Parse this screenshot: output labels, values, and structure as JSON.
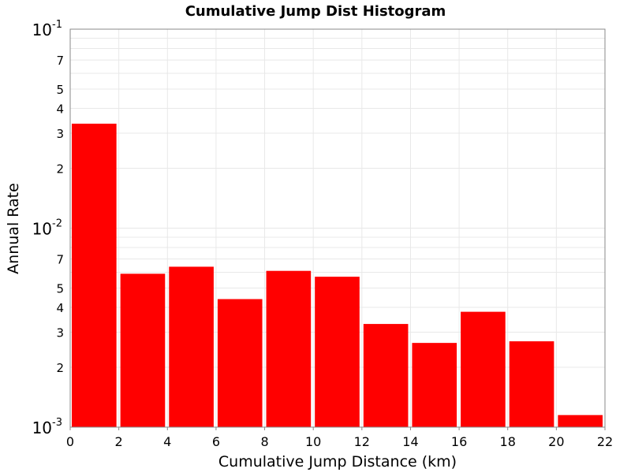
{
  "chart_data": {
    "type": "bar",
    "title": "Cumulative Jump Dist Histogram",
    "xlabel": "Cumulative Jump Distance (km)",
    "ylabel": "Annual Rate",
    "y_scale": "log",
    "xlim": [
      0,
      22
    ],
    "ylim": [
      0.001,
      0.1
    ],
    "grid": true,
    "legend": "none",
    "bar_color": "#ff0000",
    "x_ticks": [
      "0",
      "2",
      "4",
      "6",
      "8",
      "10",
      "12",
      "14",
      "16",
      "18",
      "20",
      "22"
    ],
    "y_major_ticks": [
      {
        "value": 0.1,
        "base": "10",
        "exp": "-1"
      },
      {
        "value": 0.01,
        "base": "10",
        "exp": "-2"
      },
      {
        "value": 0.001,
        "base": "10",
        "exp": "-3"
      }
    ],
    "y_minor_labels": [
      "7",
      "5",
      "4",
      "3",
      "2"
    ],
    "bins": [
      {
        "x0": 0,
        "x1": 2,
        "value": 0.0335
      },
      {
        "x0": 2,
        "x1": 4,
        "value": 0.0059
      },
      {
        "x0": 4,
        "x1": 6,
        "value": 0.0064
      },
      {
        "x0": 6,
        "x1": 8,
        "value": 0.0044
      },
      {
        "x0": 8,
        "x1": 10,
        "value": 0.0061
      },
      {
        "x0": 10,
        "x1": 12,
        "value": 0.0057
      },
      {
        "x0": 12,
        "x1": 14,
        "value": 0.0033
      },
      {
        "x0": 14,
        "x1": 16,
        "value": 0.00265
      },
      {
        "x0": 16,
        "x1": 18,
        "value": 0.0038
      },
      {
        "x0": 18,
        "x1": 20,
        "value": 0.0027
      },
      {
        "x0": 20,
        "x1": 22,
        "value": 0.00115
      }
    ]
  }
}
